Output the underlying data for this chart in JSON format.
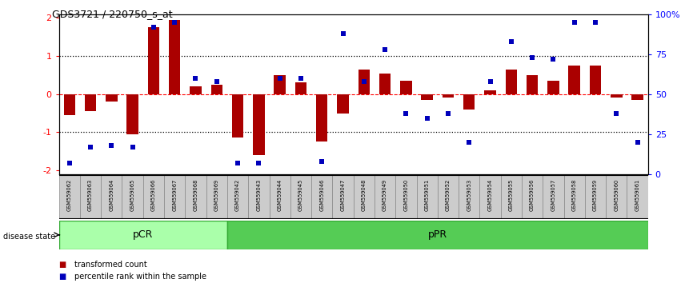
{
  "title": "GDS3721 / 220750_s_at",
  "samples": [
    "GSM559062",
    "GSM559063",
    "GSM559064",
    "GSM559065",
    "GSM559066",
    "GSM559067",
    "GSM559068",
    "GSM559069",
    "GSM559042",
    "GSM559043",
    "GSM559044",
    "GSM559045",
    "GSM559046",
    "GSM559047",
    "GSM559048",
    "GSM559049",
    "GSM559050",
    "GSM559051",
    "GSM559052",
    "GSM559053",
    "GSM559054",
    "GSM559055",
    "GSM559056",
    "GSM559057",
    "GSM559058",
    "GSM559059",
    "GSM559060",
    "GSM559061"
  ],
  "transformed_count": [
    -0.55,
    -0.45,
    -0.2,
    -1.05,
    1.75,
    1.95,
    0.2,
    0.25,
    -1.15,
    -1.6,
    0.5,
    0.3,
    -1.25,
    -0.5,
    0.65,
    0.55,
    0.35,
    -0.15,
    -0.1,
    -0.4,
    0.1,
    0.65,
    0.5,
    0.35,
    0.75,
    0.75,
    -0.1,
    -0.15
  ],
  "percentile_rank": [
    7,
    17,
    18,
    17,
    92,
    95,
    60,
    58,
    7,
    7,
    60,
    60,
    8,
    88,
    58,
    78,
    38,
    35,
    38,
    20,
    58,
    83,
    73,
    72,
    95,
    95,
    38,
    20
  ],
  "pcr_count": 8,
  "ppr_count": 20,
  "pcr_color": "#aaffaa",
  "ppr_color": "#55cc55",
  "bar_color": "#AA0000",
  "dot_color": "#0000BB",
  "ylim": [
    -2.1,
    2.1
  ],
  "y2lim": [
    0,
    100
  ],
  "yticks_left": [
    -2,
    -1,
    0,
    1,
    2
  ],
  "yticks_right": [
    0,
    25,
    50,
    75,
    100
  ],
  "legend_bar": "transformed count",
  "legend_dot": "percentile rank within the sample",
  "disease_label": "disease state"
}
